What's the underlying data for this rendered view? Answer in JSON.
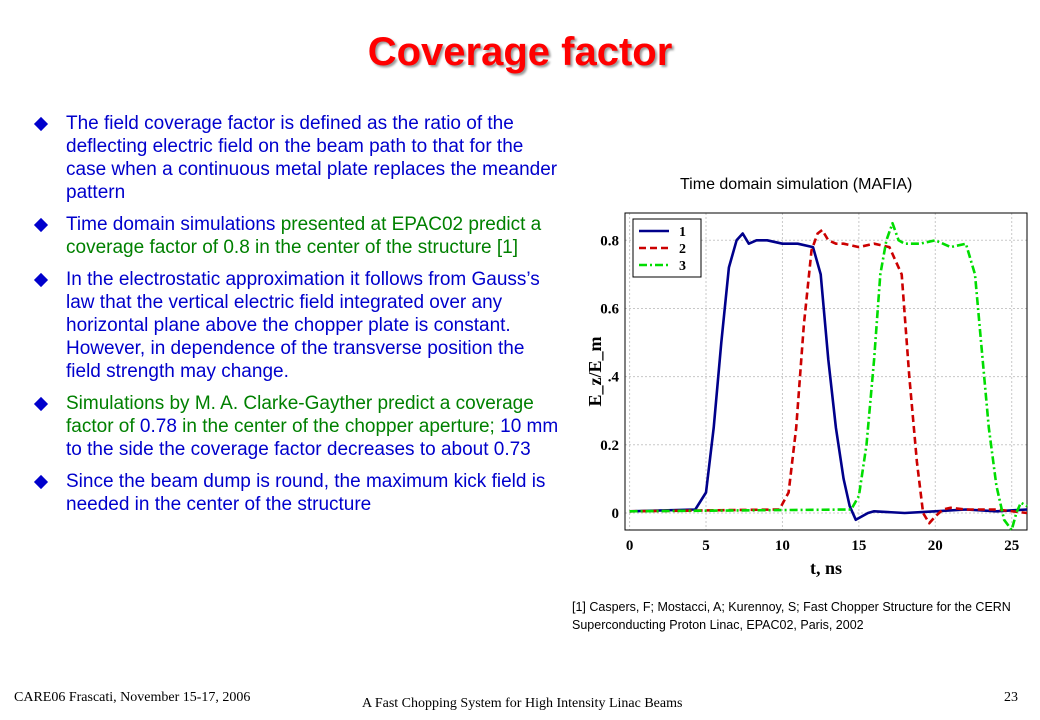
{
  "slide": {
    "title": "Coverage factor",
    "bullets": [
      {
        "parts": [
          {
            "text": "The field coverage factor is defined as the ratio of the deflecting electric field on the beam path to that for the case when a continuous metal plate replaces the meander pattern",
            "color": "#0000cc"
          }
        ]
      },
      {
        "parts": [
          {
            "text": "Time domain simulations ",
            "color": "#0000cc"
          },
          {
            "text": "presented at EPAC02 predict a coverage factor of 0.8 in the center of the structure [1]",
            "color": "#008000"
          }
        ]
      },
      {
        "parts": [
          {
            "text": "In the electrostatic approximation it follows from Gauss’s law that the vertical electric field integrated over any horizontal plane above the chopper plate is constant. However, in dependence of the transverse position the field strength may change.",
            "color": "#0000cc"
          }
        ]
      },
      {
        "parts": [
          {
            "text": "Simulations by M. A. Clarke-Gayther predict a coverage factor of ",
            "color": "#008000"
          },
          {
            "text": "0.78",
            "color": "#0000cc"
          },
          {
            "text": " in the center of the chopper aperture; ",
            "color": "#008000"
          },
          {
            "text": "10 mm to the side the coverage factor decreases to about 0.73",
            "color": "#0000cc"
          }
        ]
      },
      {
        "parts": [
          {
            "text": "Since the beam dump is round, the maximum kick field is needed in the center of the structure",
            "color": "#0000cc"
          }
        ]
      }
    ],
    "chart_caption": "Time domain simulation (MAFIA)",
    "footnote": "[1] Caspers, F; Mostacci, A; Kurennoy, S; Fast Chopper Structure for the CERN Superconducting Proton Linac, EPAC02, Paris, 2002",
    "footer_left": "CARE06 Frascati, November 15-17, 2006",
    "footer_center": "A Fast Chopping System for High Intensity Linac Beams",
    "page_number": "23",
    "colors": {
      "title": "#ff0000",
      "text_blue": "#0000cc",
      "text_green": "#008000"
    }
  },
  "chart_data": {
    "type": "line",
    "title": "",
    "xlabel": "t, ns",
    "ylabel": "E_z/E_m",
    "xlim": [
      -0.3,
      26
    ],
    "ylim": [
      -0.05,
      0.88
    ],
    "x_ticks": [
      0,
      5,
      10,
      15,
      20,
      25
    ],
    "y_ticks": [
      0,
      0.2,
      0.4,
      0.6,
      0.8
    ],
    "y_tick_labels": [
      "0",
      "0.2",
      ".4",
      "0.6",
      "0.8"
    ],
    "grid": true,
    "legend_position": "top-left",
    "series": [
      {
        "name": "1",
        "color": "#00008b",
        "dash": "solid",
        "x": [
          0,
          4.3,
          5.0,
          5.5,
          6.0,
          6.5,
          7.0,
          7.4,
          7.8,
          8.3,
          9.0,
          10,
          11,
          12,
          12.5,
          13.0,
          13.5,
          14.0,
          14.4,
          14.8,
          15.2,
          15.6,
          16,
          18,
          20,
          22,
          24,
          26
        ],
        "y": [
          0.005,
          0.01,
          0.06,
          0.25,
          0.5,
          0.72,
          0.8,
          0.82,
          0.79,
          0.8,
          0.8,
          0.79,
          0.79,
          0.78,
          0.7,
          0.45,
          0.25,
          0.1,
          0.02,
          -0.02,
          -0.01,
          0.0,
          0.005,
          0.0,
          0.005,
          0.01,
          0.005,
          0.01
        ]
      },
      {
        "name": "2",
        "color": "#cc0000",
        "dash": "dashed",
        "x": [
          0,
          9.8,
          10.4,
          10.9,
          11.4,
          11.9,
          12.3,
          12.6,
          13.0,
          13.5,
          14,
          15,
          16,
          17,
          17.8,
          18.3,
          18.8,
          19.2,
          19.6,
          20.0,
          20.5,
          21,
          22,
          24,
          26
        ],
        "y": [
          0.005,
          0.01,
          0.06,
          0.25,
          0.55,
          0.77,
          0.82,
          0.83,
          0.8,
          0.79,
          0.79,
          0.78,
          0.79,
          0.78,
          0.7,
          0.4,
          0.15,
          0.0,
          -0.03,
          -0.01,
          0.01,
          0.015,
          0.01,
          0.01,
          0.0
        ]
      },
      {
        "name": "3",
        "color": "#00dd00",
        "dash": "dashdot",
        "x": [
          0,
          14.5,
          15.0,
          15.5,
          16.0,
          16.4,
          16.8,
          17.2,
          17.6,
          18,
          19,
          20,
          21,
          22,
          22.6,
          23.0,
          23.5,
          24.0,
          24.5,
          25.0,
          25.3,
          25.6,
          26
        ],
        "y": [
          0.005,
          0.01,
          0.05,
          0.2,
          0.45,
          0.7,
          0.8,
          0.85,
          0.8,
          0.79,
          0.79,
          0.8,
          0.78,
          0.79,
          0.7,
          0.5,
          0.25,
          0.08,
          -0.02,
          -0.05,
          0.0,
          0.03,
          0.02
        ]
      }
    ]
  }
}
